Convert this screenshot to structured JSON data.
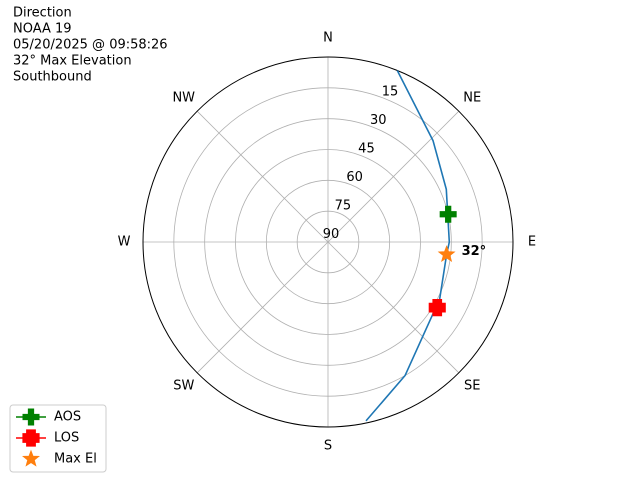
{
  "chart_data": {
    "type": "polar",
    "title_lines": [
      "Direction",
      "NOAA 19",
      "05/20/2025 @ 09:58:26",
      "32° Max Elevation",
      "Southbound"
    ],
    "rlim": [
      90,
      0
    ],
    "rticks": [
      15,
      30,
      45,
      60,
      75,
      90
    ],
    "theta_labels": [
      {
        "value": 0,
        "label": "N"
      },
      {
        "value": 45,
        "label": "NE"
      },
      {
        "value": 90,
        "label": "E"
      },
      {
        "value": 135,
        "label": "SE"
      },
      {
        "value": 180,
        "label": "S"
      },
      {
        "value": 225,
        "label": "SW"
      },
      {
        "value": 270,
        "label": "W"
      },
      {
        "value": 315,
        "label": "NW"
      }
    ],
    "grid": true,
    "track": {
      "color": "#1f77b4",
      "azimuth": [
        22,
        46,
        66,
        90,
        96,
        117,
        150,
        168
      ],
      "elevation": [
        0,
        19,
        27,
        31,
        32,
        29,
        15,
        1
      ]
    },
    "markers": [
      {
        "name": "AOS",
        "color": "#008000",
        "marker": "plus",
        "azimuth": 77,
        "elevation": 30
      },
      {
        "name": "LOS",
        "color": "#ff0000",
        "marker": "x",
        "azimuth": 121,
        "elevation": 28
      },
      {
        "name": "Max El",
        "color": "#ff7f0e",
        "marker": "star",
        "azimuth": 96,
        "elevation": 32
      }
    ],
    "annotation": {
      "text": "32°",
      "azimuth": 96,
      "elevation": 32
    },
    "legend": "lower left"
  }
}
